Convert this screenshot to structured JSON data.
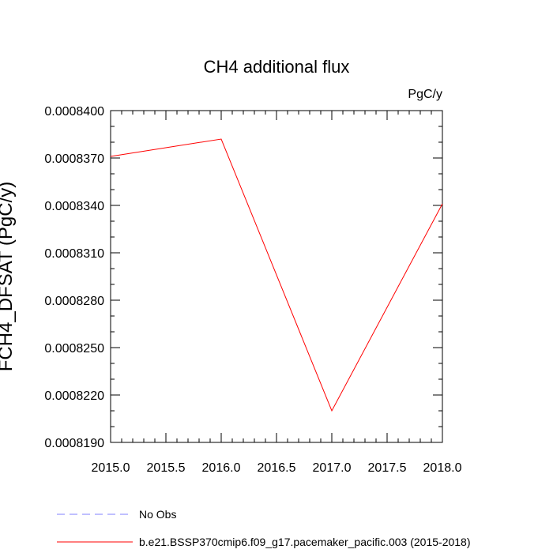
{
  "chart_data": {
    "type": "line",
    "title": "CH4 additional flux",
    "units": "PgC/y",
    "ylabel": "FCH4_DFSAT  (PgC/y)",
    "xlabel": "",
    "xlim": [
      2015.0,
      2018.0
    ],
    "ylim": [
      0.000819,
      0.00084
    ],
    "x_ticks": [
      2015.0,
      2015.5,
      2016.0,
      2016.5,
      2017.0,
      2017.5,
      2018.0
    ],
    "x_tick_labels": [
      "2015.0",
      "2015.5",
      "2016.0",
      "2016.5",
      "2017.0",
      "2017.5",
      "2018.0"
    ],
    "y_ticks": [
      0.000819,
      0.000822,
      0.000825,
      0.000828,
      0.000831,
      0.000834,
      0.000837,
      0.00084
    ],
    "y_tick_labels": [
      "0.0008190",
      "0.0008220",
      "0.0008250",
      "0.0008280",
      "0.0008310",
      "0.0008340",
      "0.0008370",
      "0.0008400"
    ],
    "grid": false,
    "legend_position": "bottom-left",
    "series": [
      {
        "name": "b.e21.BSSP370cmip6.f09_g17.pacemaker_pacific.003 (2015-2018)",
        "color": "#ff0000",
        "style": "solid",
        "x": [
          2015.0,
          2016.0,
          2017.0,
          2018.0
        ],
        "values": [
          0.0008371,
          0.0008382,
          0.000821,
          0.0008341
        ]
      }
    ],
    "legend": [
      {
        "label": "No Obs",
        "color": "#8080ff",
        "style": "dashed"
      },
      {
        "label": "b.e21.BSSP370cmip6.f09_g17.pacemaker_pacific.003 (2015-2018)",
        "color": "#ff0000",
        "style": "solid"
      }
    ]
  }
}
